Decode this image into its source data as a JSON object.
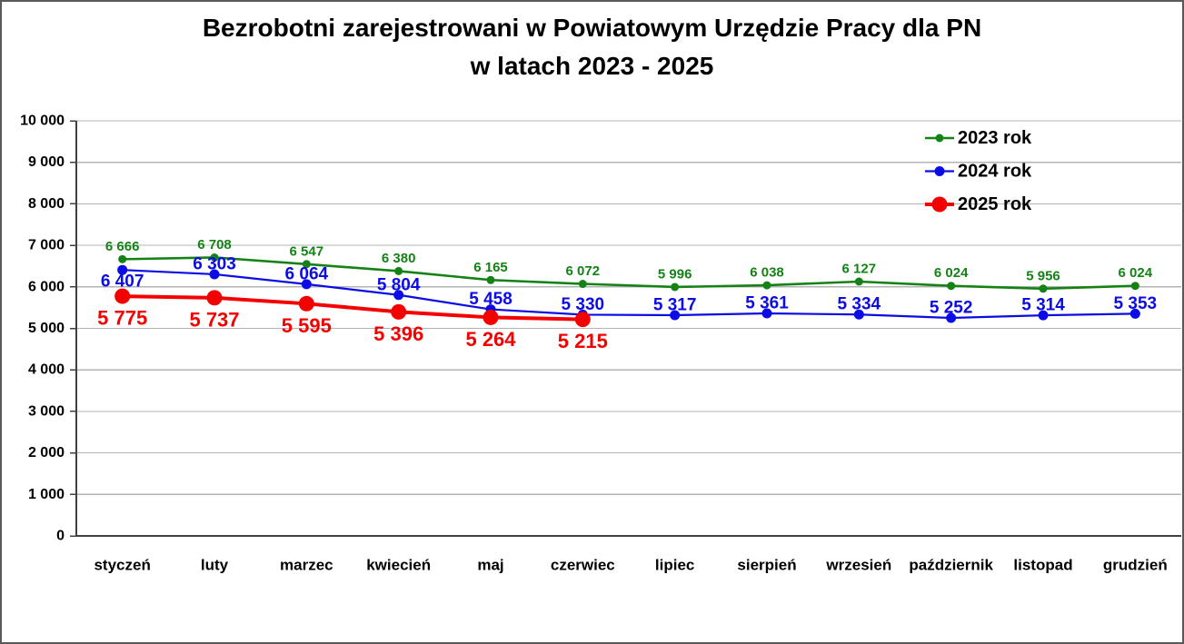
{
  "window": {
    "background": "#ffffff",
    "border_color": "#595959"
  },
  "title": {
    "line1": "Bezrobotni zarejestrowani w Powiatowym Urzędzie Pracy dla PN",
    "line2": "w latach 2023 - 2025"
  },
  "chart_data": {
    "type": "line",
    "title": "Bezrobotni zarejestrowani w Powiatowym Urzędzie Pracy dla PN w latach 2023 - 2025",
    "categories": [
      "styczeń",
      "luty",
      "marzec",
      "kwiecień",
      "maj",
      "czerwiec",
      "lipiec",
      "sierpień",
      "wrzesień",
      "październik",
      "listopad",
      "grudzień"
    ],
    "series": [
      {
        "name": "2023 rok",
        "color": "#148214",
        "values": [
          6666,
          6708,
          6547,
          6380,
          6165,
          6072,
          5996,
          6038,
          6127,
          6024,
          5956,
          6024
        ],
        "line_width": 2.6,
        "marker_radius": 4.5,
        "label_font_size": 15,
        "label_dy": -14,
        "label_overrides": {}
      },
      {
        "name": "2024 rok",
        "color": "#0b0be6",
        "values": [
          6407,
          6303,
          6064,
          5804,
          5458,
          5330,
          5317,
          5361,
          5334,
          5252,
          5314,
          5353
        ],
        "line_width": 2.2,
        "marker_radius": 5.5,
        "label_font_size": 19,
        "label_dy": -11,
        "label_overrides": {
          "0": 13
        }
      },
      {
        "name": "2025 rok",
        "color": "#f50000",
        "values": [
          5775,
          5737,
          5595,
          5396,
          5264,
          5215
        ],
        "line_width": 4,
        "marker_radius": 8.5,
        "label_font_size": 22,
        "label_dy": 24,
        "label_overrides": {}
      }
    ],
    "xlabel": "",
    "ylabel": "",
    "ylim": [
      0,
      10000
    ],
    "ytick_step": 1000,
    "ytick_labels": [
      "0",
      "1 000",
      "2 000",
      "3 000",
      "4 000",
      "5 000",
      "6 000",
      "7 000",
      "8 000",
      "9 000",
      "10 000"
    ],
    "grid": true,
    "legend_position": "top-right",
    "legend_entries": [
      "2023 rok",
      "2024 rok",
      "2025 rok"
    ],
    "number_format": "space-thousands",
    "axis_color": "#404040",
    "grid_color": "#b3b3b3",
    "tick_label_color": "#000000",
    "xtick_font_size": 17,
    "ytick_font_size": 16,
    "legend_font_size": 20
  }
}
